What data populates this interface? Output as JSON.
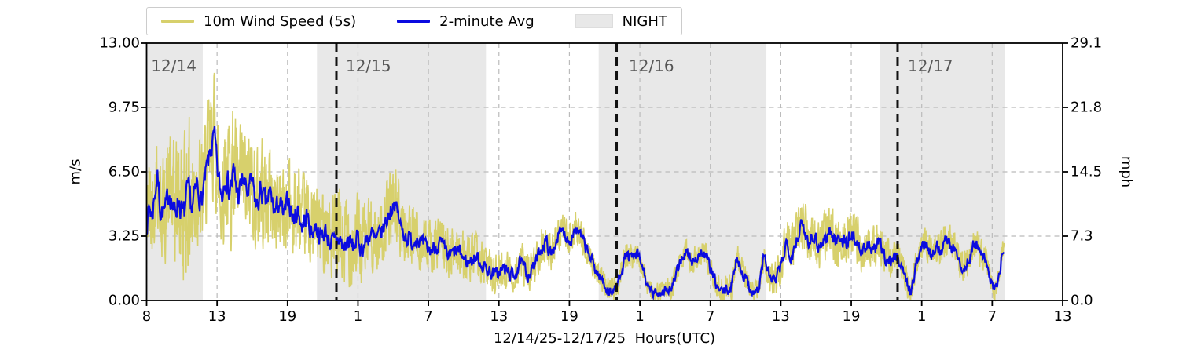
{
  "chart_data": {
    "type": "line",
    "xlabel": "12/14/25-12/17/25  Hours(UTC)",
    "ylabel_left": "m/s",
    "ylabel_right": "mph",
    "ylim_left": [
      0.0,
      13.0
    ],
    "ylim_right": [
      0.0,
      29.1
    ],
    "yticks_left": [
      "13.00",
      "9.75",
      "6.50",
      "3.25",
      "0.00"
    ],
    "yticks_right": [
      "29.1",
      "21.8",
      "14.5",
      "7.3",
      "0.0"
    ],
    "xticks": [
      "8",
      "13",
      "19",
      "1",
      "7",
      "13",
      "19",
      "1",
      "7",
      "13",
      "19",
      "1",
      "7",
      "13"
    ],
    "grid": true,
    "legend_position": "top",
    "day_labels": [
      {
        "label": "12/14",
        "f": 0.005
      },
      {
        "label": "12/15",
        "f": 0.2175
      },
      {
        "label": "12/16",
        "f": 0.5264
      },
      {
        "label": "12/17",
        "f": 0.831
      }
    ],
    "midnight_lines_f": [
      0.2072,
      0.5131,
      0.8198
    ],
    "night_spans_f": [
      [
        0.0,
        0.0613
      ],
      [
        0.186,
        0.3705
      ],
      [
        0.4935,
        0.6766
      ],
      [
        0.8001,
        0.9368
      ]
    ],
    "data_end_f": 0.936,
    "series": [
      {
        "name": "10m Wind Speed (5s)",
        "color": "#d7d06c",
        "role": "raw"
      },
      {
        "name": "2-minute Avg",
        "color": "#0b0be0",
        "role": "avg"
      }
    ],
    "avg_points_f_v": [
      [
        0.0,
        3.8
      ],
      [
        0.003,
        4.8
      ],
      [
        0.006,
        4.2
      ],
      [
        0.009,
        5.5
      ],
      [
        0.012,
        6.3
      ],
      [
        0.015,
        4.6
      ],
      [
        0.02,
        4.4
      ],
      [
        0.025,
        5.6
      ],
      [
        0.03,
        4.4
      ],
      [
        0.035,
        5.2
      ],
      [
        0.04,
        4.1
      ],
      [
        0.045,
        5.4
      ],
      [
        0.05,
        4.6
      ],
      [
        0.055,
        5.8
      ],
      [
        0.06,
        5.0
      ],
      [
        0.065,
        6.4
      ],
      [
        0.07,
        7.6
      ],
      [
        0.074,
        8.2
      ],
      [
        0.078,
        6.2
      ],
      [
        0.082,
        5.2
      ],
      [
        0.086,
        6.6
      ],
      [
        0.09,
        5.6
      ],
      [
        0.095,
        6.4
      ],
      [
        0.1,
        5.2
      ],
      [
        0.105,
        6.2
      ],
      [
        0.11,
        5.4
      ],
      [
        0.115,
        6.0
      ],
      [
        0.12,
        4.6
      ],
      [
        0.125,
        5.6
      ],
      [
        0.13,
        4.8
      ],
      [
        0.135,
        5.4
      ],
      [
        0.14,
        4.4
      ],
      [
        0.145,
        5.0
      ],
      [
        0.15,
        4.2
      ],
      [
        0.155,
        5.2
      ],
      [
        0.16,
        4.0
      ],
      [
        0.165,
        4.6
      ],
      [
        0.17,
        3.7
      ],
      [
        0.175,
        4.3
      ],
      [
        0.18,
        3.4
      ],
      [
        0.185,
        3.8
      ],
      [
        0.19,
        3.2
      ],
      [
        0.195,
        3.5
      ],
      [
        0.2,
        3.0
      ],
      [
        0.205,
        2.8
      ],
      [
        0.21,
        3.2
      ],
      [
        0.215,
        2.6
      ],
      [
        0.22,
        3.0
      ],
      [
        0.225,
        2.7
      ],
      [
        0.23,
        3.1
      ],
      [
        0.235,
        2.6
      ],
      [
        0.24,
        3.0
      ],
      [
        0.245,
        3.4
      ],
      [
        0.25,
        2.9
      ],
      [
        0.255,
        3.3
      ],
      [
        0.26,
        3.8
      ],
      [
        0.265,
        4.4
      ],
      [
        0.27,
        5.0
      ],
      [
        0.274,
        4.4
      ],
      [
        0.278,
        3.6
      ],
      [
        0.285,
        3.2
      ],
      [
        0.29,
        2.9
      ],
      [
        0.295,
        3.3
      ],
      [
        0.3,
        2.8
      ],
      [
        0.31,
        2.5
      ],
      [
        0.32,
        2.9
      ],
      [
        0.33,
        2.2
      ],
      [
        0.34,
        2.5
      ],
      [
        0.35,
        1.9
      ],
      [
        0.36,
        2.2
      ],
      [
        0.37,
        1.6
      ],
      [
        0.38,
        1.3
      ],
      [
        0.39,
        1.6
      ],
      [
        0.4,
        1.2
      ],
      [
        0.408,
        1.9
      ],
      [
        0.416,
        1.3
      ],
      [
        0.424,
        1.8
      ],
      [
        0.43,
        2.6
      ],
      [
        0.436,
        3.0
      ],
      [
        0.442,
        2.2
      ],
      [
        0.448,
        3.2
      ],
      [
        0.455,
        3.5
      ],
      [
        0.462,
        3.0
      ],
      [
        0.468,
        3.7
      ],
      [
        0.474,
        3.2
      ],
      [
        0.48,
        2.6
      ],
      [
        0.486,
        2.0
      ],
      [
        0.492,
        1.4
      ],
      [
        0.5,
        0.8
      ],
      [
        0.506,
        0.4
      ],
      [
        0.513,
        0.6
      ],
      [
        0.518,
        1.6
      ],
      [
        0.524,
        2.3
      ],
      [
        0.53,
        2.1
      ],
      [
        0.536,
        2.3
      ],
      [
        0.542,
        1.6
      ],
      [
        0.548,
        0.5
      ],
      [
        0.554,
        0.3
      ],
      [
        0.56,
        0.4
      ],
      [
        0.566,
        0.6
      ],
      [
        0.572,
        0.5
      ],
      [
        0.578,
        1.2
      ],
      [
        0.584,
        2.2
      ],
      [
        0.59,
        2.4
      ],
      [
        0.596,
        1.9
      ],
      [
        0.602,
        2.3
      ],
      [
        0.608,
        2.4
      ],
      [
        0.614,
        1.8
      ],
      [
        0.62,
        1.0
      ],
      [
        0.626,
        0.4
      ],
      [
        0.632,
        0.5
      ],
      [
        0.638,
        0.6
      ],
      [
        0.644,
        2.2
      ],
      [
        0.65,
        1.5
      ],
      [
        0.656,
        0.9
      ],
      [
        0.662,
        0.4
      ],
      [
        0.668,
        0.5
      ],
      [
        0.674,
        2.3
      ],
      [
        0.68,
        1.2
      ],
      [
        0.686,
        0.9
      ],
      [
        0.692,
        1.6
      ],
      [
        0.698,
        2.9
      ],
      [
        0.704,
        2.3
      ],
      [
        0.71,
        3.2
      ],
      [
        0.716,
        3.8
      ],
      [
        0.722,
        3.0
      ],
      [
        0.728,
        3.4
      ],
      [
        0.734,
        2.7
      ],
      [
        0.74,
        3.1
      ],
      [
        0.746,
        3.5
      ],
      [
        0.752,
        2.9
      ],
      [
        0.758,
        3.3
      ],
      [
        0.764,
        2.8
      ],
      [
        0.77,
        3.4
      ],
      [
        0.776,
        2.9
      ],
      [
        0.782,
        2.4
      ],
      [
        0.788,
        2.8
      ],
      [
        0.794,
        2.5
      ],
      [
        0.8,
        2.9
      ],
      [
        0.806,
        2.2
      ],
      [
        0.812,
        2.0
      ],
      [
        0.818,
        2.2
      ],
      [
        0.824,
        1.9
      ],
      [
        0.83,
        0.8
      ],
      [
        0.835,
        0.5
      ],
      [
        0.84,
        1.8
      ],
      [
        0.845,
        2.6
      ],
      [
        0.85,
        2.9
      ],
      [
        0.856,
        2.4
      ],
      [
        0.862,
        2.8
      ],
      [
        0.868,
        2.5
      ],
      [
        0.874,
        3.2
      ],
      [
        0.88,
        2.6
      ],
      [
        0.886,
        2.2
      ],
      [
        0.892,
        1.4
      ],
      [
        0.898,
        2.2
      ],
      [
        0.904,
        2.9
      ],
      [
        0.91,
        2.4
      ],
      [
        0.916,
        2.0
      ],
      [
        0.92,
        1.2
      ],
      [
        0.925,
        0.5
      ],
      [
        0.93,
        0.9
      ],
      [
        0.934,
        2.5
      ],
      [
        0.936,
        2.6
      ]
    ],
    "raw_amp_f_a": [
      [
        0.0,
        3.2
      ],
      [
        0.02,
        3.4
      ],
      [
        0.035,
        4.6
      ],
      [
        0.046,
        5.2
      ],
      [
        0.06,
        3.6
      ],
      [
        0.072,
        4.1
      ],
      [
        0.08,
        3.6
      ],
      [
        0.09,
        4.8
      ],
      [
        0.1,
        3.6
      ],
      [
        0.11,
        3.4
      ],
      [
        0.125,
        3.6
      ],
      [
        0.14,
        3.0
      ],
      [
        0.155,
        3.3
      ],
      [
        0.17,
        2.8
      ],
      [
        0.185,
        2.7
      ],
      [
        0.2,
        2.9
      ],
      [
        0.215,
        3.3
      ],
      [
        0.23,
        2.7
      ],
      [
        0.25,
        2.4
      ],
      [
        0.265,
        2.3
      ],
      [
        0.28,
        2.4
      ],
      [
        0.3,
        1.9
      ],
      [
        0.32,
        1.7
      ],
      [
        0.34,
        1.6
      ],
      [
        0.36,
        1.5
      ],
      [
        0.38,
        1.3
      ],
      [
        0.4,
        1.4
      ],
      [
        0.42,
        1.3
      ],
      [
        0.44,
        1.2
      ],
      [
        0.46,
        1.1
      ],
      [
        0.48,
        1.0
      ],
      [
        0.5,
        0.8
      ],
      [
        0.52,
        0.9
      ],
      [
        0.545,
        0.7
      ],
      [
        0.57,
        0.7
      ],
      [
        0.595,
        0.9
      ],
      [
        0.62,
        0.8
      ],
      [
        0.645,
        0.9
      ],
      [
        0.665,
        0.7
      ],
      [
        0.68,
        1.0
      ],
      [
        0.7,
        1.6
      ],
      [
        0.715,
        1.8
      ],
      [
        0.73,
        1.5
      ],
      [
        0.75,
        1.9
      ],
      [
        0.77,
        1.7
      ],
      [
        0.79,
        1.4
      ],
      [
        0.81,
        1.3
      ],
      [
        0.825,
        1.1
      ],
      [
        0.84,
        0.9
      ],
      [
        0.855,
        1.0
      ],
      [
        0.875,
        1.2
      ],
      [
        0.89,
        1.1
      ],
      [
        0.905,
        1.1
      ],
      [
        0.92,
        0.9
      ],
      [
        0.936,
        0.7
      ]
    ]
  },
  "legend": {
    "items": [
      {
        "label": "10m Wind Speed (5s)",
        "swatch": "line",
        "color": "#d7d06c"
      },
      {
        "label": "2-minute Avg",
        "swatch": "line",
        "color": "#0b0be0"
      },
      {
        "label": "NIGHT",
        "swatch": "patch",
        "color": "#e8e8e8"
      }
    ]
  },
  "colors": {
    "raw_line": "#d7d06c",
    "avg_line": "#0b0be0",
    "night_fill": "#e8e8e8",
    "gridline": "#bbbbbb",
    "midnight_line": "#111111",
    "day_label_text": "#555555",
    "spine": "#000000"
  }
}
